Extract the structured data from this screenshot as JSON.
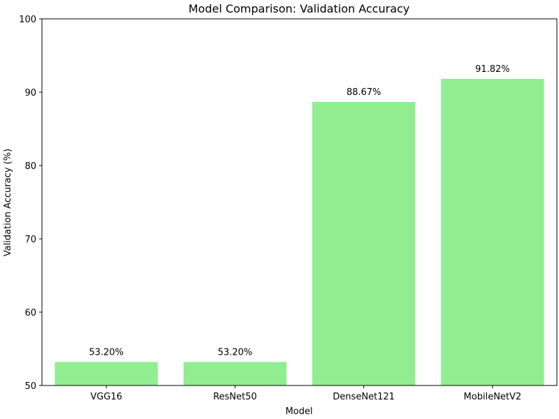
{
  "chart_data": {
    "type": "bar",
    "title": "Model Comparison: Validation Accuracy",
    "xlabel": "Model",
    "ylabel": "Validation Accuracy (%)",
    "categories": [
      "VGG16",
      "ResNet50",
      "DenseNet121",
      "MobileNetV2"
    ],
    "values": [
      53.2,
      53.2,
      88.67,
      91.82
    ],
    "value_labels": [
      "53.20%",
      "53.20%",
      "88.67%",
      "91.82%"
    ],
    "ylim": [
      50,
      100
    ],
    "yticks": [
      50,
      60,
      70,
      80,
      90,
      100
    ],
    "ytick_labels": [
      "50",
      "60",
      "70",
      "80",
      "90",
      "100"
    ],
    "grid": false,
    "legend": "none",
    "bar_color": "#90ee90"
  }
}
